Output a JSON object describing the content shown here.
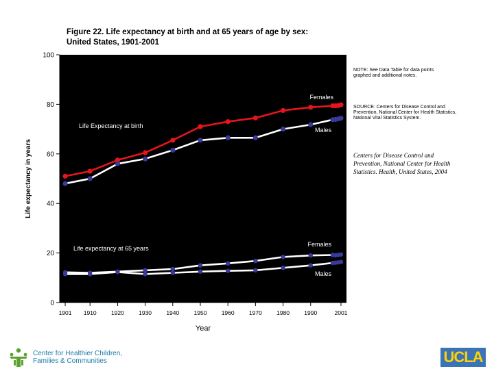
{
  "header": {
    "title_line1": "Figure 22. Life expectancy at birth and at 65 years of age by sex:",
    "title_line2": "United States, 1901-2001"
  },
  "notes": {
    "note": "NOTE: See Data Table for data points graphed and additional notes.",
    "source": "SOURCE: Centers for Disease Control and Prevention, National Center for Health Statistics, National Vital Statistics System.",
    "citation": "Centers for Disease Control and Prevention, National Center for Health Statistics. Health, United States, 2004"
  },
  "footer": {
    "org_line1": "Center for Healthier Children,",
    "org_line2": "Families & Communities",
    "ucla": "UCLA"
  },
  "colors": {
    "background": "#ffffff",
    "plot_area": "#000000",
    "females": "#e8141c",
    "males": "#ffffff",
    "marker_65": "#3a3a9a",
    "axis": "#000000"
  },
  "chart_data": {
    "type": "line",
    "title": "Figure 22. Life expectancy at birth and at 65 years of age by sex: United States, 1901-2001",
    "xlabel": "Year",
    "ylabel": "Life expectancy in years",
    "xlim": [
      1899,
      2003
    ],
    "ylim": [
      0,
      100
    ],
    "x_ticks": [
      "1901",
      "1910",
      "1920",
      "1930",
      "1940",
      "1950",
      "1960",
      "1970",
      "1980",
      "1990",
      "2001"
    ],
    "y_ticks": [
      0,
      20,
      40,
      60,
      80,
      100
    ],
    "grid": false,
    "annotations": [
      "Life Expectancy at birth",
      "Life expectancy at 65 years",
      "Females",
      "Males",
      "Females",
      "Males"
    ],
    "series": [
      {
        "name": "Females",
        "group": "at birth",
        "points": [
          [
            1901,
            51.0
          ],
          [
            1910,
            53.0
          ],
          [
            1920,
            57.5
          ],
          [
            1930,
            60.5
          ],
          [
            1940,
            65.5
          ],
          [
            1950,
            71.0
          ],
          [
            1960,
            73.0
          ],
          [
            1970,
            74.5
          ],
          [
            1980,
            77.5
          ],
          [
            1990,
            78.8
          ],
          [
            1998,
            79.4
          ],
          [
            1999,
            79.4
          ],
          [
            2000,
            79.5
          ],
          [
            2001,
            79.8
          ]
        ]
      },
      {
        "name": "Males",
        "group": "at birth",
        "points": [
          [
            1901,
            48.0
          ],
          [
            1910,
            50.0
          ],
          [
            1920,
            56.0
          ],
          [
            1930,
            58.0
          ],
          [
            1940,
            61.5
          ],
          [
            1950,
            65.5
          ],
          [
            1960,
            66.5
          ],
          [
            1970,
            66.5
          ],
          [
            1980,
            70.0
          ],
          [
            1990,
            71.8
          ],
          [
            1998,
            73.8
          ],
          [
            1999,
            73.9
          ],
          [
            2000,
            74.1
          ],
          [
            2001,
            74.4
          ]
        ]
      },
      {
        "name": "Females",
        "group": "at 65 years",
        "points": [
          [
            1901,
            12.2
          ],
          [
            1910,
            12.0
          ],
          [
            1920,
            12.5
          ],
          [
            1930,
            13.0
          ],
          [
            1940,
            13.5
          ],
          [
            1950,
            15.0
          ],
          [
            1960,
            15.8
          ],
          [
            1970,
            16.8
          ],
          [
            1980,
            18.4
          ],
          [
            1990,
            19.0
          ],
          [
            1998,
            19.2
          ],
          [
            1999,
            19.1
          ],
          [
            2000,
            19.2
          ],
          [
            2001,
            19.4
          ]
        ]
      },
      {
        "name": "Males",
        "group": "at 65 years",
        "points": [
          [
            1901,
            11.5
          ],
          [
            1910,
            11.5
          ],
          [
            1920,
            12.3
          ],
          [
            1930,
            11.5
          ],
          [
            1940,
            12.0
          ],
          [
            1950,
            12.5
          ],
          [
            1960,
            12.8
          ],
          [
            1970,
            13.0
          ],
          [
            1980,
            14.0
          ],
          [
            1990,
            15.0
          ],
          [
            1998,
            16.0
          ],
          [
            1999,
            16.1
          ],
          [
            2000,
            16.2
          ],
          [
            2001,
            16.4
          ]
        ]
      }
    ]
  }
}
